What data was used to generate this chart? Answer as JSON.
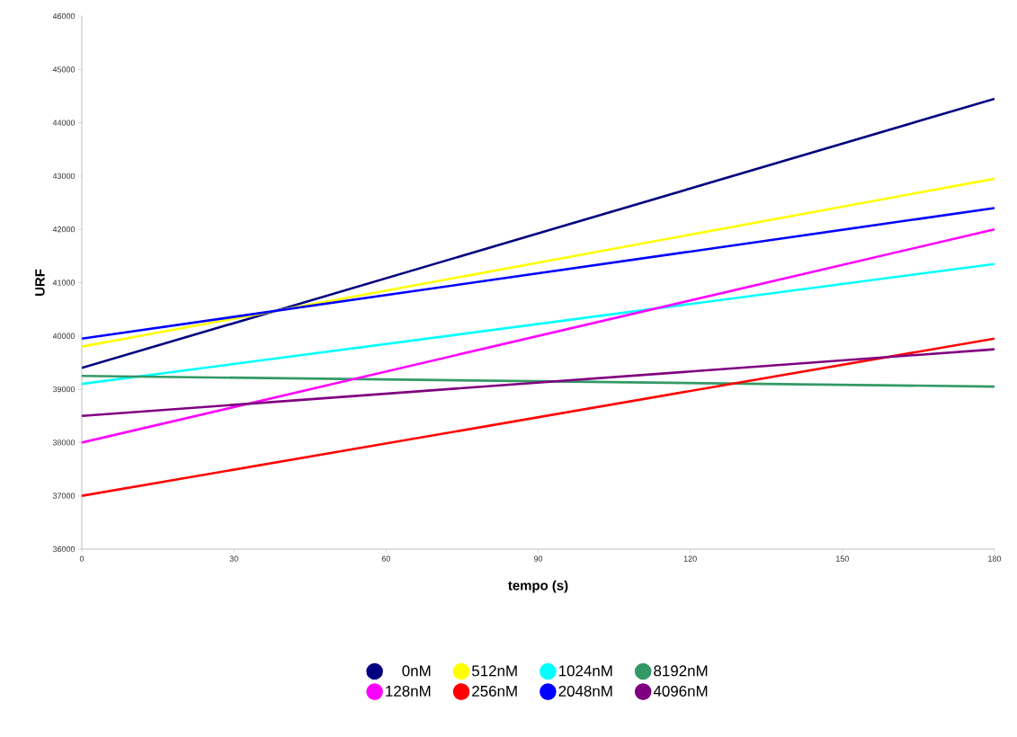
{
  "chart_data": {
    "type": "line",
    "xlabel": "tempo (s)",
    "ylabel": "URF",
    "x": [
      0,
      180
    ],
    "series": [
      {
        "name": "0nM",
        "color": "#000080",
        "values": [
          39400,
          44450
        ]
      },
      {
        "name": "512nM",
        "color": "#ffff00",
        "values": [
          39800,
          42950
        ]
      },
      {
        "name": "1024nM",
        "color": "#00ffff",
        "values": [
          39100,
          41350
        ]
      },
      {
        "name": "8192nM",
        "color": "#339966",
        "values": [
          39250,
          39050
        ]
      },
      {
        "name": "128nM",
        "color": "#ff00ff",
        "values": [
          38000,
          42000
        ]
      },
      {
        "name": "256nM",
        "color": "#ff0000",
        "values": [
          37000,
          39950
        ]
      },
      {
        "name": "2048nM",
        "color": "#0000ff",
        "values": [
          39950,
          42400
        ]
      },
      {
        "name": "4096nM",
        "color": "#800080",
        "values": [
          38500,
          39750
        ]
      }
    ],
    "xlim": [
      0,
      180
    ],
    "xticks": [
      0,
      30,
      60,
      90,
      120,
      150,
      180
    ],
    "ylim": [
      36000,
      46000
    ],
    "yticks": [
      36000,
      37000,
      38000,
      39000,
      40000,
      41000,
      42000,
      43000,
      44000,
      45000,
      46000
    ],
    "grid": false,
    "legend": "bottom",
    "marker": "none",
    "line_style": "solid"
  }
}
